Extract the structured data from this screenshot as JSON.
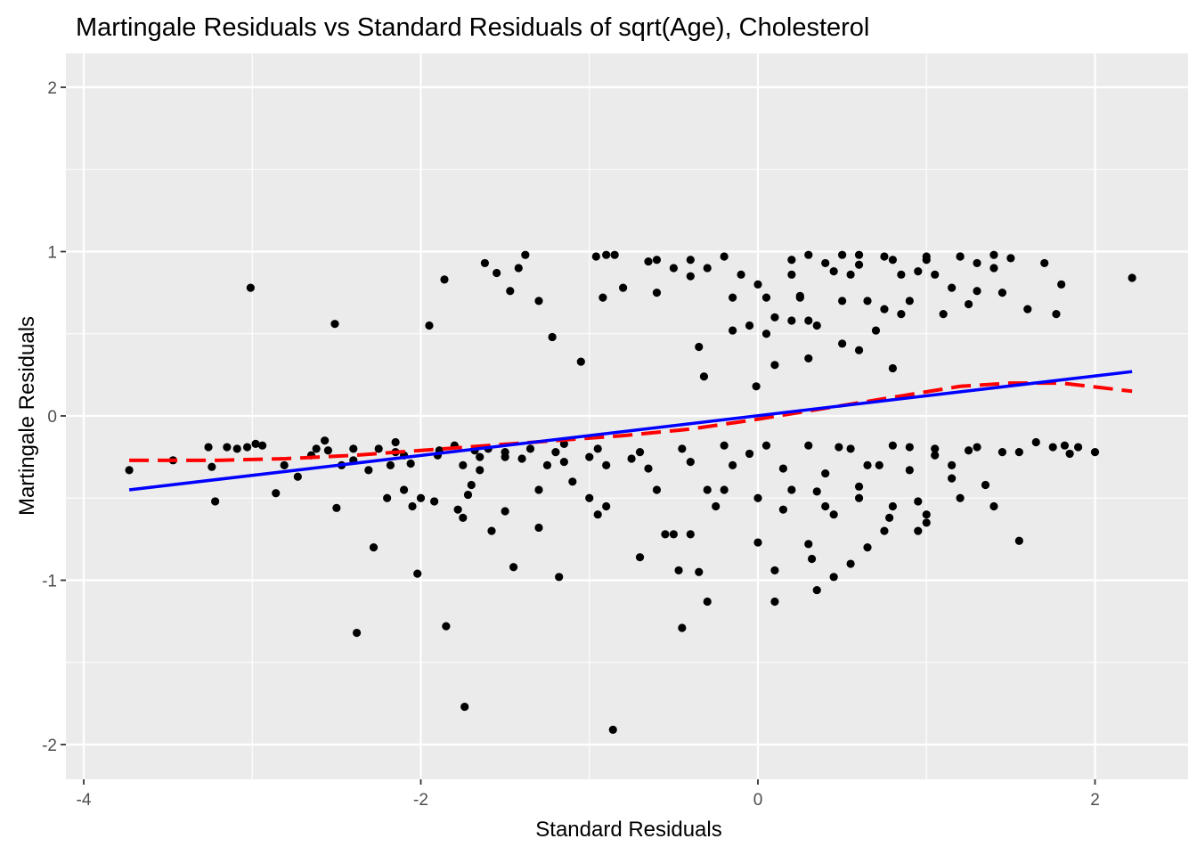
{
  "chart_data": {
    "type": "scatter",
    "title": "Martingale Residuals vs Standard Residuals of sqrt(Age), Cholesterol",
    "xlabel": "Standard Residuals",
    "ylabel": "Martingale Residuals",
    "xlim": [
      -4.0,
      2.5
    ],
    "ylim": [
      -2.2,
      2.3
    ],
    "x_ticks": [
      -4,
      -2,
      0,
      2
    ],
    "y_ticks": [
      -2,
      -1,
      0,
      1,
      2
    ],
    "x_tick_labels": [
      "-4",
      "-2",
      "0",
      "2"
    ],
    "y_tick_labels": [
      "-2",
      "-1",
      "0",
      "1",
      "2"
    ],
    "grid": true,
    "legend": "none",
    "colors": {
      "panel": "#ebebeb",
      "grid": "#ffffff",
      "points": "#000000",
      "linear_fit": "#0000ff",
      "smooth_fit": "#ff0000"
    },
    "points": [
      [
        -3.73,
        -0.33
      ],
      [
        -3.47,
        -0.27
      ],
      [
        -3.26,
        -0.19
      ],
      [
        -3.24,
        -0.31
      ],
      [
        -3.22,
        -0.52
      ],
      [
        -3.15,
        -0.19
      ],
      [
        -3.09,
        -0.2
      ],
      [
        -3.03,
        -0.19
      ],
      [
        -3.01,
        0.78
      ],
      [
        -2.98,
        -0.17
      ],
      [
        -2.94,
        -0.18
      ],
      [
        -2.86,
        -0.47
      ],
      [
        -2.81,
        -0.3
      ],
      [
        -2.73,
        -0.37
      ],
      [
        -2.62,
        -0.2
      ],
      [
        -2.57,
        -0.15
      ],
      [
        -2.55,
        -0.21
      ],
      [
        -2.51,
        0.56
      ],
      [
        -2.5,
        -0.56
      ],
      [
        -2.47,
        -0.3
      ],
      [
        -2.4,
        -0.2
      ],
      [
        -2.38,
        -1.32
      ],
      [
        -2.31,
        -0.33
      ],
      [
        -2.28,
        -0.8
      ],
      [
        -2.25,
        -0.2
      ],
      [
        -2.2,
        -0.5
      ],
      [
        -2.18,
        -0.3
      ],
      [
        -2.15,
        -0.16
      ],
      [
        -2.1,
        -0.24
      ],
      [
        -2.06,
        -0.29
      ],
      [
        -2.02,
        -0.96
      ],
      [
        -2.0,
        -0.5
      ],
      [
        -1.95,
        0.55
      ],
      [
        -1.92,
        -0.52
      ],
      [
        -1.89,
        -0.21
      ],
      [
        -1.86,
        0.83
      ],
      [
        -1.85,
        -1.28
      ],
      [
        -1.8,
        -0.18
      ],
      [
        -1.78,
        -0.57
      ],
      [
        -1.74,
        -1.77
      ],
      [
        -1.72,
        -0.48
      ],
      [
        -1.68,
        -0.21
      ],
      [
        -1.65,
        -0.33
      ],
      [
        -1.62,
        0.93
      ],
      [
        -1.6,
        -0.2
      ],
      [
        -1.58,
        -0.7
      ],
      [
        -1.55,
        0.87
      ],
      [
        -1.5,
        -0.25
      ],
      [
        -1.47,
        0.76
      ],
      [
        -1.45,
        -0.92
      ],
      [
        -1.42,
        0.9
      ],
      [
        -1.38,
        0.98
      ],
      [
        -1.35,
        -0.2
      ],
      [
        -1.3,
        0.7
      ],
      [
        -1.25,
        -0.3
      ],
      [
        -1.22,
        0.48
      ],
      [
        -1.18,
        -0.98
      ],
      [
        -1.15,
        -0.17
      ],
      [
        -1.1,
        -0.4
      ],
      [
        -1.05,
        0.33
      ],
      [
        -1.0,
        -0.25
      ],
      [
        -0.96,
        0.97
      ],
      [
        -0.92,
        0.72
      ],
      [
        -0.9,
        -0.55
      ],
      [
        -0.86,
        -1.91
      ],
      [
        -0.85,
        0.98
      ],
      [
        -0.8,
        0.78
      ],
      [
        -0.75,
        -0.26
      ],
      [
        -0.7,
        -0.86
      ],
      [
        -0.65,
        0.94
      ],
      [
        -0.6,
        0.75
      ],
      [
        -0.55,
        -0.72
      ],
      [
        -0.5,
        0.9
      ],
      [
        -0.47,
        -0.94
      ],
      [
        -0.45,
        -1.29
      ],
      [
        -0.4,
        0.85
      ],
      [
        -0.35,
        0.42
      ],
      [
        -0.32,
        0.24
      ],
      [
        -0.3,
        -1.13
      ],
      [
        -0.25,
        -0.55
      ],
      [
        -0.2,
        0.97
      ],
      [
        -0.15,
        0.72
      ],
      [
        -0.1,
        0.86
      ],
      [
        -0.05,
        -0.23
      ],
      [
        0.0,
        -0.77
      ],
      [
        -0.01,
        0.18
      ],
      [
        0.05,
        0.72
      ],
      [
        0.1,
        0.31
      ],
      [
        0.1,
        -0.94
      ],
      [
        0.1,
        -1.13
      ],
      [
        0.15,
        -0.57
      ],
      [
        0.2,
        0.86
      ],
      [
        0.25,
        0.72
      ],
      [
        0.3,
        -0.78
      ],
      [
        0.3,
        0.58
      ],
      [
        0.3,
        0.35
      ],
      [
        0.32,
        -0.87
      ],
      [
        0.35,
        -0.46
      ],
      [
        0.4,
        0.93
      ],
      [
        0.45,
        -0.6
      ],
      [
        0.48,
        -0.19
      ],
      [
        0.5,
        0.44
      ],
      [
        0.55,
        0.86
      ],
      [
        0.6,
        -0.43
      ],
      [
        0.6,
        0.92
      ],
      [
        0.65,
        -0.8
      ],
      [
        0.7,
        0.52
      ],
      [
        0.72,
        -0.3
      ],
      [
        0.75,
        0.97
      ],
      [
        0.78,
        -0.62
      ],
      [
        0.8,
        0.29
      ],
      [
        0.85,
        0.86
      ],
      [
        0.9,
        -0.19
      ],
      [
        0.95,
        -0.52
      ],
      [
        1.0,
        0.95
      ],
      [
        1.05,
        -0.24
      ],
      [
        1.1,
        0.62
      ],
      [
        1.15,
        -0.38
      ],
      [
        1.2,
        0.97
      ],
      [
        1.25,
        -0.21
      ],
      [
        1.3,
        0.76
      ],
      [
        1.35,
        -0.42
      ],
      [
        1.4,
        0.9
      ],
      [
        1.45,
        -0.22
      ],
      [
        1.5,
        0.96
      ],
      [
        1.55,
        -0.76
      ],
      [
        1.6,
        0.65
      ],
      [
        1.65,
        -0.16
      ],
      [
        1.7,
        0.93
      ],
      [
        1.75,
        -0.19
      ],
      [
        1.77,
        0.62
      ],
      [
        1.8,
        0.8
      ],
      [
        1.82,
        -0.18
      ],
      [
        1.85,
        -0.23
      ],
      [
        1.9,
        -0.19
      ],
      [
        2.0,
        -0.22
      ],
      [
        2.22,
        0.84
      ],
      [
        -0.9,
        0.98
      ],
      [
        -0.6,
        0.95
      ],
      [
        -0.4,
        0.95
      ],
      [
        -0.3,
        0.9
      ],
      [
        0.2,
        0.95
      ],
      [
        0.6,
        0.98
      ],
      [
        0.8,
        0.95
      ],
      [
        1.0,
        0.97
      ],
      [
        1.2,
        0.97
      ],
      [
        1.3,
        0.93
      ],
      [
        1.4,
        0.98
      ],
      [
        0.5,
        0.98
      ],
      [
        0.3,
        0.98
      ],
      [
        -1.75,
        -0.3
      ],
      [
        -1.5,
        -0.22
      ],
      [
        -1.2,
        -0.22
      ],
      [
        -0.95,
        -0.2
      ],
      [
        -0.7,
        -0.22
      ],
      [
        -0.45,
        -0.2
      ],
      [
        -0.2,
        -0.18
      ],
      [
        0.05,
        -0.18
      ],
      [
        0.3,
        -0.18
      ],
      [
        0.55,
        -0.2
      ],
      [
        0.8,
        -0.18
      ],
      [
        1.05,
        -0.2
      ],
      [
        1.3,
        -0.19
      ],
      [
        1.55,
        -0.22
      ],
      [
        0.15,
        -0.32
      ],
      [
        0.4,
        -0.35
      ],
      [
        0.65,
        -0.3
      ],
      [
        0.9,
        -0.33
      ],
      [
        1.15,
        -0.3
      ],
      [
        -0.15,
        -0.3
      ],
      [
        -0.4,
        -0.28
      ],
      [
        -0.65,
        -0.32
      ],
      [
        -0.9,
        -0.3
      ],
      [
        -1.15,
        -0.28
      ],
      [
        -1.4,
        -0.26
      ],
      [
        -1.65,
        -0.25
      ],
      [
        -1.9,
        -0.24
      ],
      [
        -2.15,
        -0.22
      ],
      [
        -2.4,
        -0.27
      ],
      [
        -2.65,
        -0.24
      ],
      [
        0.0,
        0.8
      ],
      [
        0.1,
        0.6
      ],
      [
        0.2,
        0.58
      ],
      [
        0.35,
        0.55
      ],
      [
        0.45,
        0.88
      ],
      [
        0.65,
        0.7
      ],
      [
        0.75,
        0.65
      ],
      [
        0.95,
        0.88
      ],
      [
        1.05,
        0.86
      ],
      [
        1.15,
        0.78
      ],
      [
        -0.15,
        0.52
      ],
      [
        -0.05,
        0.55
      ],
      [
        0.25,
        0.73
      ],
      [
        0.5,
        0.7
      ],
      [
        0.85,
        0.62
      ],
      [
        1.25,
        0.68
      ],
      [
        1.45,
        0.75
      ],
      [
        0.05,
        0.5
      ],
      [
        0.6,
        0.4
      ],
      [
        0.9,
        0.7
      ],
      [
        -0.2,
        -0.45
      ],
      [
        0.0,
        -0.5
      ],
      [
        0.2,
        -0.45
      ],
      [
        0.4,
        -0.55
      ],
      [
        0.6,
        -0.5
      ],
      [
        0.8,
        -0.55
      ],
      [
        1.0,
        -0.6
      ],
      [
        1.2,
        -0.5
      ],
      [
        1.4,
        -0.55
      ],
      [
        -0.6,
        -0.45
      ],
      [
        -1.0,
        -0.5
      ],
      [
        -1.3,
        -0.45
      ],
      [
        -1.7,
        -0.42
      ],
      [
        -2.1,
        -0.45
      ],
      [
        0.55,
        -0.9
      ],
      [
        0.75,
        -0.7
      ],
      [
        0.95,
        -0.7
      ],
      [
        1.0,
        -0.65
      ],
      [
        0.45,
        -0.98
      ],
      [
        0.35,
        -1.06
      ],
      [
        -0.5,
        -0.72
      ],
      [
        -0.4,
        -0.72
      ],
      [
        -0.3,
        -0.45
      ],
      [
        -0.35,
        -0.95
      ],
      [
        -1.5,
        -0.58
      ],
      [
        -1.3,
        -0.68
      ],
      [
        -0.95,
        -0.6
      ],
      [
        -1.75,
        -0.62
      ],
      [
        -2.05,
        -0.55
      ]
    ],
    "linear_fit": {
      "x": [
        -3.73,
        2.22
      ],
      "y": [
        -0.45,
        0.27
      ]
    },
    "smooth_fit": {
      "x": [
        -3.73,
        -3.2,
        -2.8,
        -2.4,
        -2.0,
        -1.6,
        -1.2,
        -0.8,
        -0.4,
        0.0,
        0.3,
        0.6,
        0.9,
        1.2,
        1.5,
        1.8,
        2.22
      ],
      "y": [
        -0.27,
        -0.27,
        -0.26,
        -0.24,
        -0.21,
        -0.18,
        -0.15,
        -0.12,
        -0.08,
        -0.02,
        0.03,
        0.08,
        0.13,
        0.18,
        0.2,
        0.2,
        0.15
      ]
    }
  }
}
